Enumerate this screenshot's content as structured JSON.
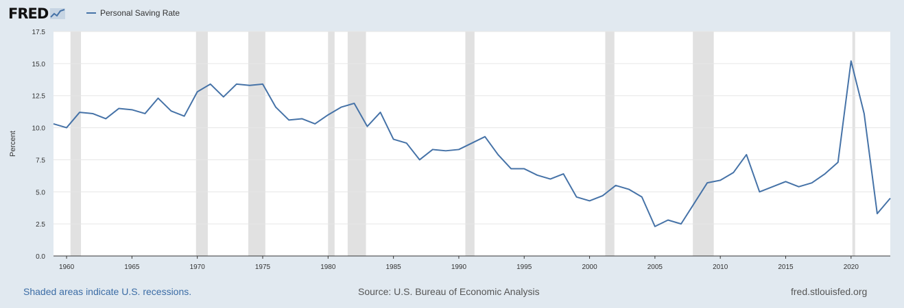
{
  "logo": {
    "text": "FRED",
    "icon": "line-graph-icon"
  },
  "footer": {
    "recession_note": "Shaded areas indicate U.S. recessions.",
    "source": "Source: U.S. Bureau of Economic Analysis",
    "site": "fred.stlouisfed.org"
  },
  "colors": {
    "series": "#4572a7",
    "recession": "#e1e1e1",
    "background": "#e1e9f0",
    "plot": "#ffffff",
    "link": "#3b6ca5"
  },
  "chart_data": {
    "type": "line",
    "title": "",
    "xlabel": "",
    "ylabel": "Percent",
    "legend": "top-left",
    "grid": true,
    "xlim": [
      1959,
      2023
    ],
    "ylim": [
      0,
      17.5
    ],
    "yticks": [
      "0.0",
      "2.5",
      "5.0",
      "7.5",
      "10.0",
      "12.5",
      "15.0",
      "17.5"
    ],
    "xticks": [
      "1960",
      "1965",
      "1970",
      "1975",
      "1980",
      "1985",
      "1990",
      "1995",
      "2000",
      "2005",
      "2010",
      "2015",
      "2020"
    ],
    "recessions": [
      [
        1960.3,
        1961.1
      ],
      [
        1969.9,
        1970.8
      ],
      [
        1973.9,
        1975.2
      ],
      [
        1980.0,
        1980.5
      ],
      [
        1981.5,
        1982.9
      ],
      [
        1990.5,
        1991.2
      ],
      [
        2001.2,
        2001.9
      ],
      [
        2007.9,
        2009.5
      ],
      [
        2020.1,
        2020.3
      ]
    ],
    "series": [
      {
        "name": "Personal Saving Rate",
        "x": [
          1959,
          1960,
          1961,
          1962,
          1963,
          1964,
          1965,
          1966,
          1967,
          1968,
          1969,
          1970,
          1971,
          1972,
          1973,
          1974,
          1975,
          1976,
          1977,
          1978,
          1979,
          1980,
          1981,
          1982,
          1983,
          1984,
          1985,
          1986,
          1987,
          1988,
          1989,
          1990,
          1991,
          1992,
          1993,
          1994,
          1995,
          1996,
          1997,
          1998,
          1999,
          2000,
          2001,
          2002,
          2003,
          2004,
          2005,
          2006,
          2007,
          2008,
          2009,
          2010,
          2011,
          2012,
          2013,
          2014,
          2015,
          2016,
          2017,
          2018,
          2019,
          2020,
          2021,
          2022,
          2023
        ],
        "values": [
          10.3,
          10.0,
          11.2,
          11.1,
          10.7,
          11.5,
          11.4,
          11.1,
          12.3,
          11.3,
          10.9,
          12.8,
          13.4,
          12.4,
          13.4,
          13.3,
          13.4,
          11.6,
          10.6,
          10.7,
          10.3,
          11.0,
          11.6,
          11.9,
          10.1,
          11.2,
          9.1,
          8.8,
          7.5,
          8.3,
          8.2,
          8.3,
          8.8,
          9.3,
          7.9,
          6.8,
          6.8,
          6.3,
          6.0,
          6.4,
          4.6,
          4.3,
          4.7,
          5.5,
          5.2,
          4.6,
          2.3,
          2.8,
          2.5,
          4.1,
          5.7,
          5.9,
          6.5,
          7.9,
          5.0,
          5.4,
          5.8,
          5.4,
          5.7,
          6.4,
          7.3,
          15.2,
          11.1,
          3.3,
          4.5
        ]
      }
    ]
  }
}
